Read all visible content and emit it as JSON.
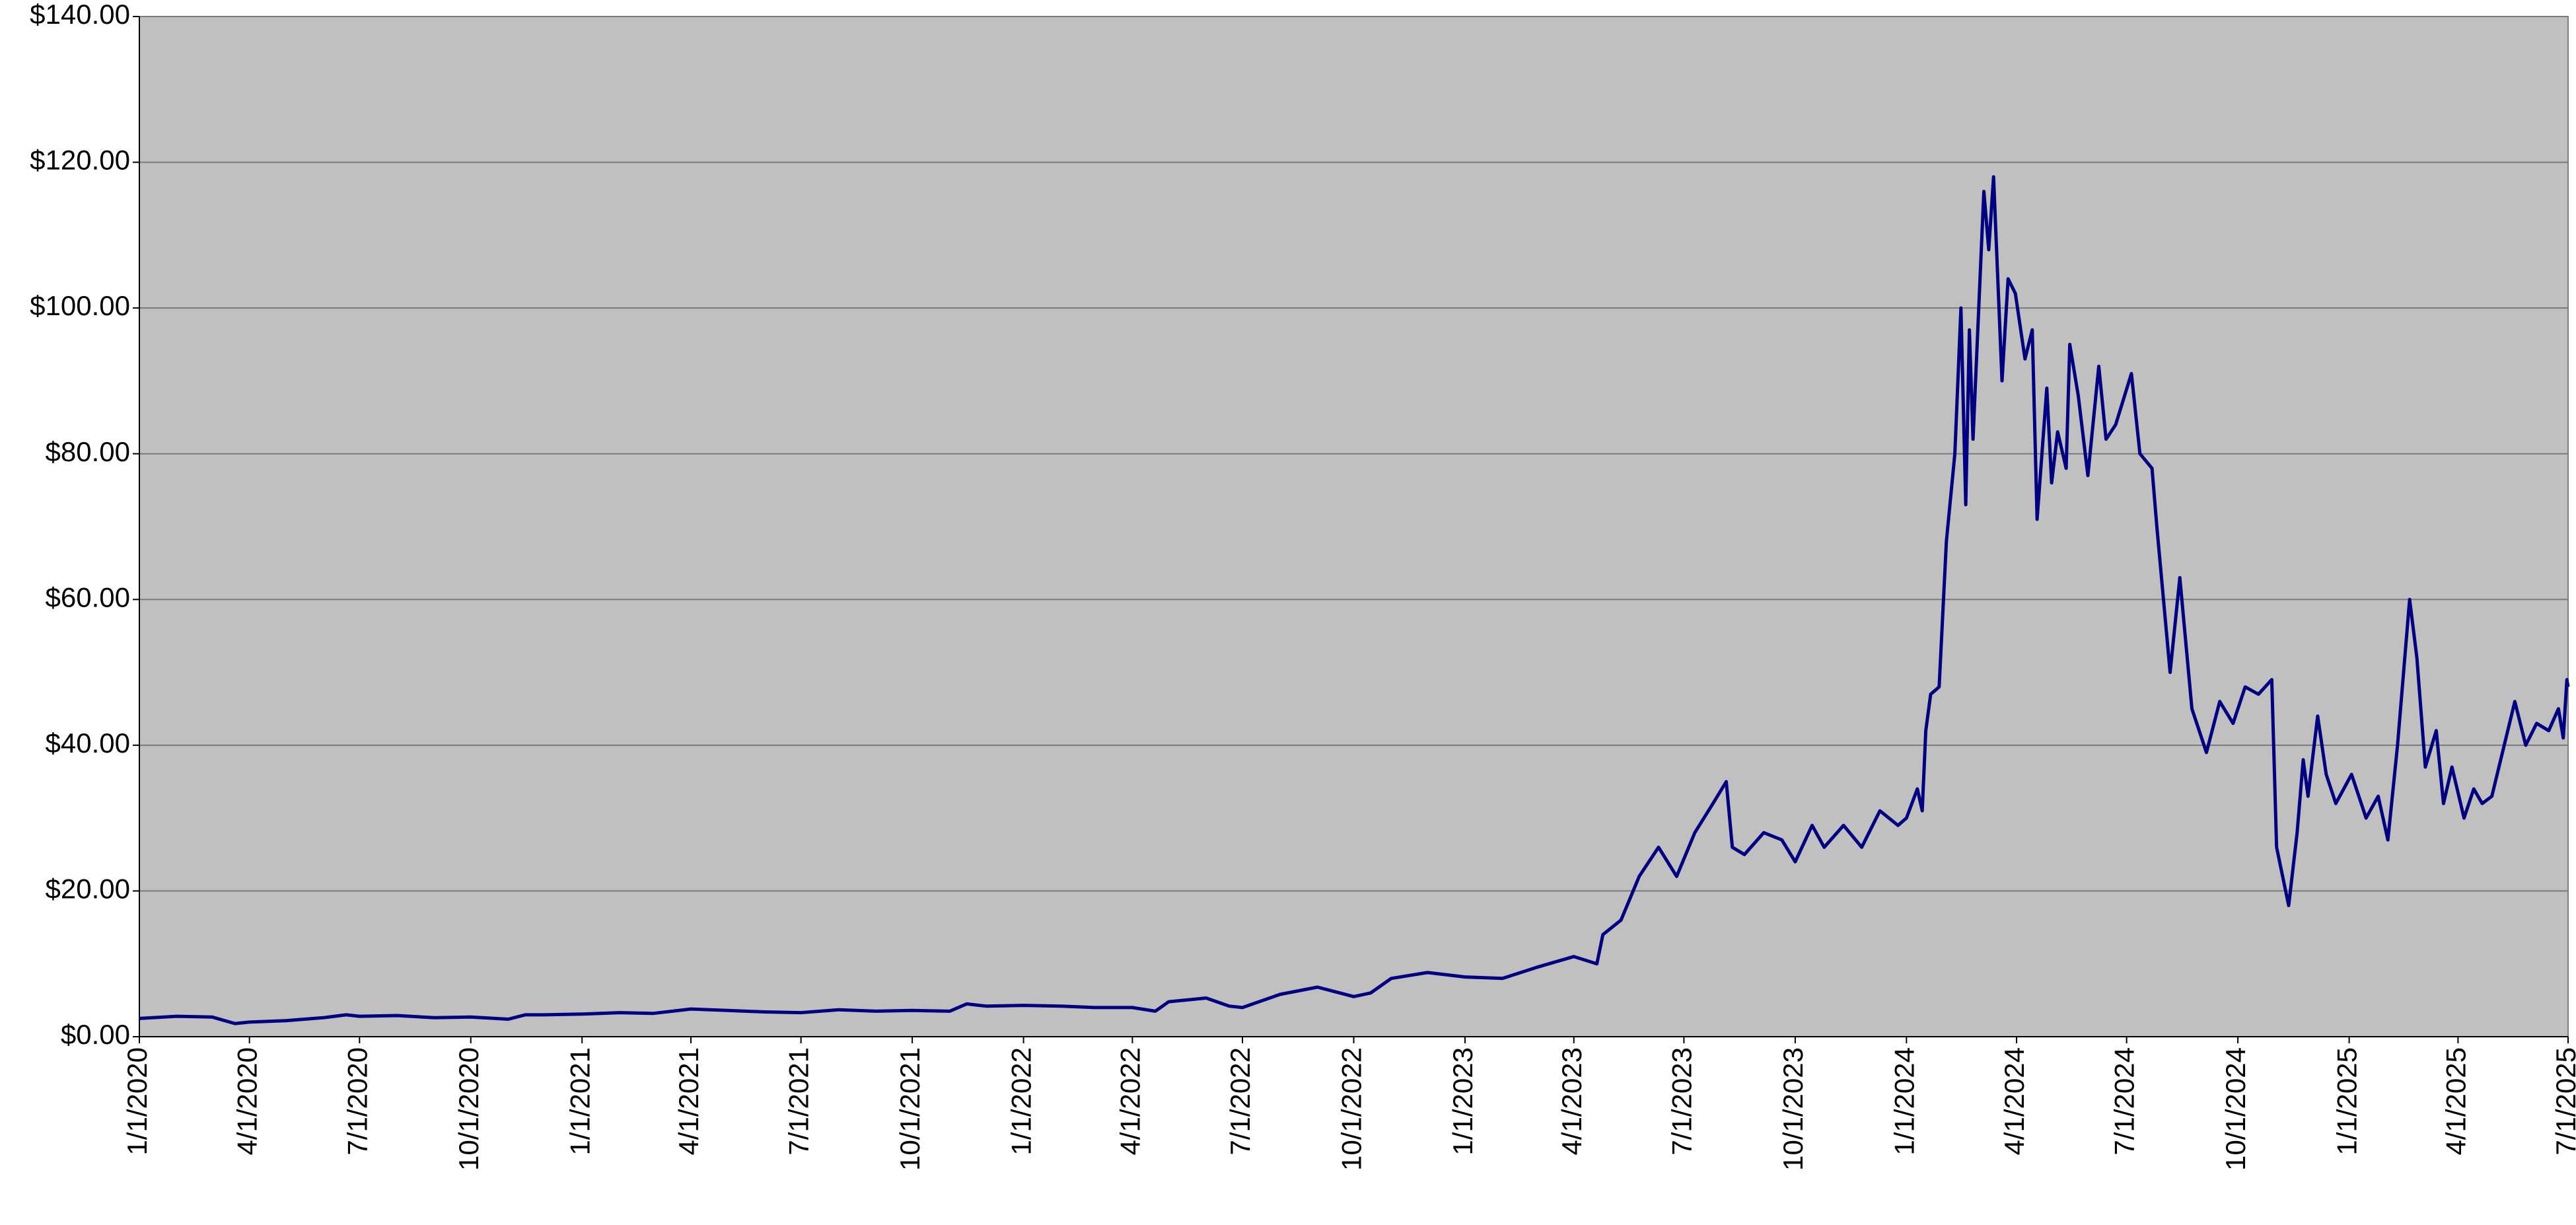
{
  "chart_data": {
    "type": "line",
    "x": [
      "1/1/2020",
      "2/1/2020",
      "3/1/2020",
      "3/20/2020",
      "4/1/2020",
      "5/1/2020",
      "6/1/2020",
      "6/20/2020",
      "7/1/2020",
      "8/1/2020",
      "9/1/2020",
      "10/1/2020",
      "11/1/2020",
      "11/15/2020",
      "12/1/2020",
      "1/1/2021",
      "2/1/2021",
      "3/1/2021",
      "4/1/2021",
      "5/1/2021",
      "6/1/2021",
      "7/1/2021",
      "8/1/2021",
      "9/1/2021",
      "10/1/2021",
      "11/1/2021",
      "11/15/2021",
      "12/1/2021",
      "1/1/2022",
      "2/1/2022",
      "3/1/2022",
      "4/1/2022",
      "4/20/2022",
      "5/1/2022",
      "6/1/2022",
      "6/20/2022",
      "7/1/2022",
      "8/1/2022",
      "9/1/2022",
      "10/1/2022",
      "10/15/2022",
      "11/1/2022",
      "12/1/2022",
      "1/1/2023",
      "2/1/2023",
      "3/1/2023",
      "4/1/2023",
      "4/20/2023",
      "4/25/2023",
      "5/10/2023",
      "5/25/2023",
      "6/10/2023",
      "6/25/2023",
      "7/10/2023",
      "7/25/2023",
      "8/5/2023",
      "8/10/2023",
      "8/20/2023",
      "9/5/2023",
      "9/20/2023",
      "10/1/2023",
      "10/15/2023",
      "10/25/2023",
      "11/10/2023",
      "11/25/2023",
      "12/10/2023",
      "12/25/2023",
      "1/1/2024",
      "1/10/2024",
      "1/14/2024",
      "1/17/2024",
      "1/21/2024",
      "1/28/2024",
      "2/3/2024",
      "2/10/2024",
      "2/15/2024",
      "2/19/2024",
      "2/22/2024",
      "2/25/2024",
      "3/5/2024",
      "3/9/2024",
      "3/13/2024",
      "3/20/2024",
      "3/25/2024",
      "3/31/2024",
      "4/8/2024",
      "4/14/2024",
      "4/18/2024",
      "4/26/2024",
      "4/30/2024",
      "5/5/2024",
      "5/12/2024",
      "5/15/2024",
      "5/22/2024",
      "5/30/2024",
      "6/8/2024",
      "6/14/2024",
      "6/22/2024",
      "7/5/2024",
      "7/12/2024",
      "7/22/2024",
      "7/26/2024",
      "8/6/2024",
      "8/14/2024",
      "8/24/2024",
      "9/5/2024",
      "9/16/2024",
      "9/27/2024",
      "10/7/2024",
      "10/18/2024",
      "10/29/2024",
      "11/2/2024",
      "11/12/2024",
      "11/19/2024",
      "11/24/2024",
      "11/28/2024",
      "12/6/2024",
      "12/13/2024",
      "12/21/2024",
      "1/3/2025",
      "1/15/2025",
      "1/25/2025",
      "2/2/2025",
      "2/10/2025",
      "2/20/2025",
      "2/26/2025",
      "3/5/2025",
      "3/14/2025",
      "3/20/2025",
      "3/27/2025",
      "4/6/2025",
      "4/14/2025",
      "4/21/2025",
      "4/29/2025",
      "5/18/2025",
      "5/27/2025",
      "6/5/2025",
      "6/15/2025",
      "6/23/2025",
      "6/27/2025",
      "6/30/2025",
      "7/1/2025"
    ],
    "series": [
      {
        "color": "#000080",
        "values": [
          2.5,
          2.8,
          2.7,
          1.8,
          2.0,
          2.2,
          2.6,
          3.0,
          2.8,
          2.9,
          2.6,
          2.7,
          2.4,
          3.0,
          3.0,
          3.1,
          3.3,
          3.2,
          3.8,
          3.6,
          3.4,
          3.3,
          3.7,
          3.5,
          3.6,
          3.5,
          4.5,
          4.2,
          4.3,
          4.2,
          4.0,
          4.0,
          3.5,
          4.8,
          5.3,
          4.2,
          4.0,
          5.8,
          6.8,
          5.5,
          6.0,
          8.0,
          8.8,
          8.2,
          8.0,
          9.5,
          11,
          10,
          14,
          16,
          22,
          26,
          22,
          28,
          32,
          35,
          26,
          25,
          28,
          27,
          24,
          29,
          26,
          29,
          26,
          31,
          29,
          30,
          34,
          31,
          42,
          47,
          48,
          68,
          80,
          100,
          73,
          97,
          82,
          116,
          108,
          118,
          90,
          104,
          102,
          93,
          97,
          71,
          89,
          76,
          83,
          78,
          95,
          88,
          77,
          92,
          82,
          84,
          91,
          80,
          78,
          70,
          50,
          63,
          45,
          39,
          46,
          43,
          48,
          47,
          49,
          26,
          18,
          28,
          38,
          33,
          44,
          36,
          32,
          36,
          30,
          33,
          27,
          40,
          60,
          52,
          37,
          42,
          32,
          37,
          30,
          34,
          32,
          33,
          46,
          40,
          43,
          42,
          45,
          41,
          49,
          48
        ]
      }
    ],
    "xlim": [
      "1/1/2020",
      "7/1/2025"
    ],
    "xticks": [
      "1/1/2020",
      "4/1/2020",
      "7/1/2020",
      "10/1/2020",
      "1/1/2021",
      "4/1/2021",
      "7/1/2021",
      "10/1/2021",
      "1/1/2022",
      "4/1/2022",
      "7/1/2022",
      "10/1/2022",
      "1/1/2023",
      "4/1/2023",
      "7/1/2023",
      "10/1/2023",
      "1/1/2024",
      "4/1/2024",
      "7/1/2024",
      "10/1/2024",
      "1/1/2025",
      "4/1/2025",
      "7/1/2025"
    ],
    "ylim": [
      0,
      140
    ],
    "yticks": [
      {
        "value": 0,
        "label": "$0.00"
      },
      {
        "value": 20,
        "label": "$20.00"
      },
      {
        "value": 40,
        "label": "$40.00"
      },
      {
        "value": 60,
        "label": "$60.00"
      },
      {
        "value": 80,
        "label": "$80.00"
      },
      {
        "value": 100,
        "label": "$100.00"
      },
      {
        "value": 120,
        "label": "$120.00"
      },
      {
        "value": 140,
        "label": "$140.00"
      }
    ],
    "grid": true,
    "background": "#c0c0c0"
  }
}
